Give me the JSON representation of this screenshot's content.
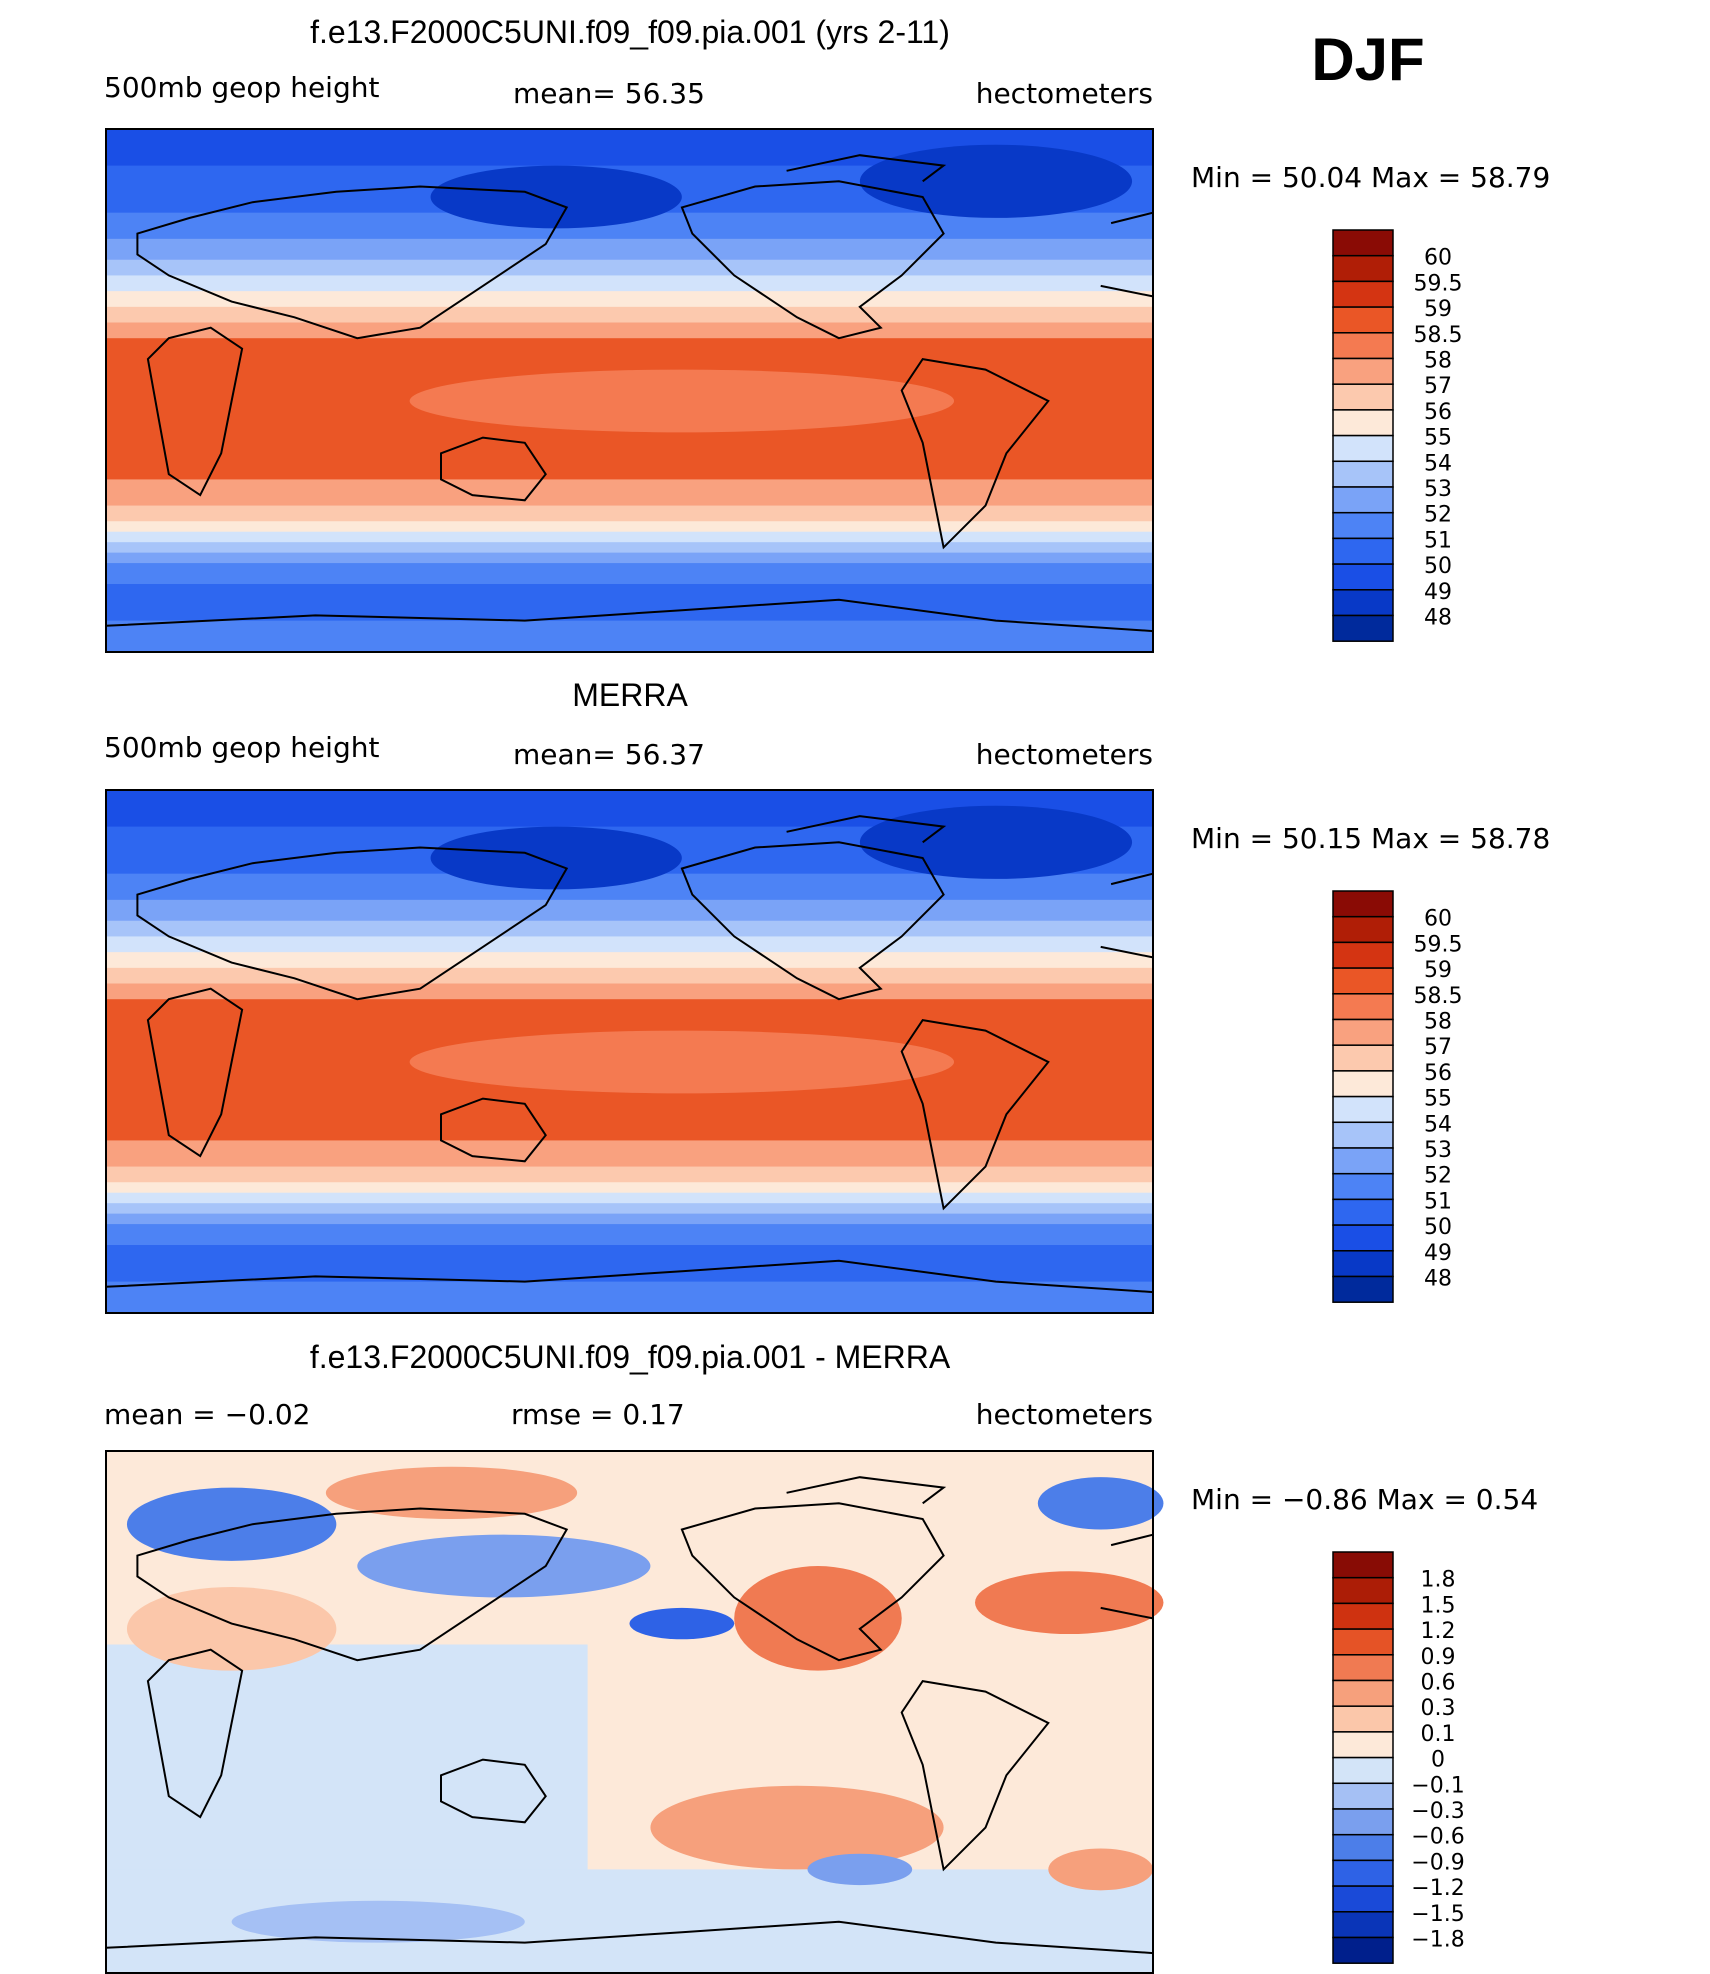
{
  "season": "DJF",
  "panels": [
    {
      "title": "f.e13.F2000C5UNI.f09_f09.pia.001 (yrs 2-11)",
      "left_label": "500mb  geop  height",
      "center_label": "mean=   56.35",
      "units": "hectometers",
      "min_max": "Min  =    50.04  Max  =    58.79",
      "field": "absolute",
      "colorbar": [
        "60",
        "59.5",
        "59",
        "58.5",
        "58",
        "57",
        "56",
        "55",
        "54",
        "53",
        "52",
        "51",
        "50",
        "49",
        "48"
      ]
    },
    {
      "title": "MERRA",
      "left_label": "500mb  geop  height",
      "center_label": "mean=   56.37",
      "units": "hectometers",
      "min_max": "Min  =    50.15  Max  =    58.78",
      "field": "absolute",
      "colorbar": [
        "60",
        "59.5",
        "59",
        "58.5",
        "58",
        "57",
        "56",
        "55",
        "54",
        "53",
        "52",
        "51",
        "50",
        "49",
        "48"
      ]
    },
    {
      "title": "f.e13.F2000C5UNI.f09_f09.pia.001 - MERRA",
      "left_label": "mean  =    −0.02",
      "center_label": "rmse  =     0.17",
      "units": "hectometers",
      "min_max": "Min  =   −0.86  Max  =      0.54",
      "field": "difference",
      "colorbar": [
        "1.8",
        "1.5",
        "1.2",
        "0.9",
        "0.6",
        "0.3",
        "0.1",
        "0",
        "−0.1",
        "−0.3",
        "−0.6",
        "−0.9",
        "−1.2",
        "−1.5",
        "−1.8"
      ]
    }
  ],
  "palette": [
    "#002a9c",
    "#0839c7",
    "#1a4fe6",
    "#2e67f0",
    "#4d83f5",
    "#7aa3f7",
    "#a7c4f9",
    "#d2e3fb",
    "#fde9d9",
    "#fcc9ae",
    "#f9a17f",
    "#f47a51",
    "#ea5626",
    "#d43412",
    "#b01e06",
    "#8a0b05"
  ],
  "diff_palette": [
    "#001f8c",
    "#0a35b8",
    "#1a4ad8",
    "#2e62e6",
    "#4c7ee9",
    "#7a9fee",
    "#a5c0f4",
    "#d3e4f8",
    "#fde9d9",
    "#fbc7aa",
    "#f6a07c",
    "#f07a52",
    "#e55326",
    "#cf3210",
    "#ac1d06",
    "#880c05"
  ]
}
